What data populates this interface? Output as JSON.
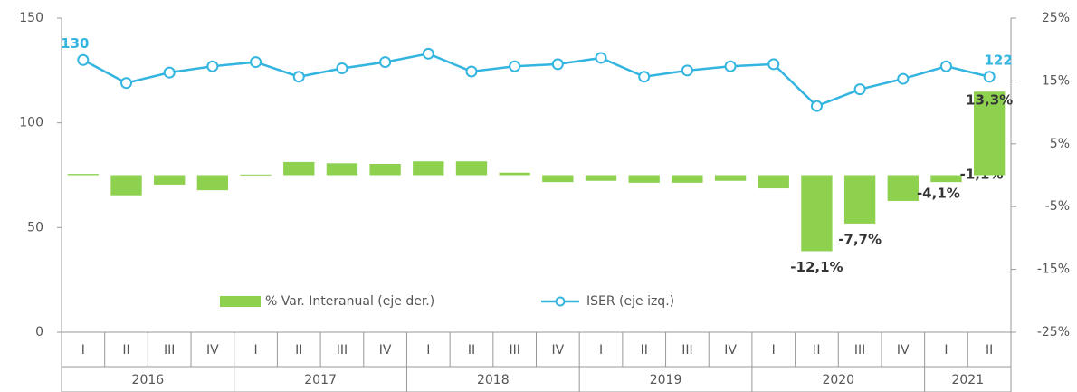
{
  "chart_data": {
    "type": "bar_line",
    "categories": [
      "I",
      "II",
      "III",
      "IV",
      "I",
      "II",
      "III",
      "IV",
      "I",
      "II",
      "III",
      "IV",
      "I",
      "II",
      "III",
      "IV",
      "I",
      "II",
      "III",
      "IV",
      "I",
      "II"
    ],
    "groups": [
      {
        "name": "2016",
        "count": 4
      },
      {
        "name": "2017",
        "count": 4
      },
      {
        "name": "2018",
        "count": 4
      },
      {
        "name": "2019",
        "count": 4
      },
      {
        "name": "2020",
        "count": 4
      },
      {
        "name": "2021",
        "count": 2
      }
    ],
    "series": [
      {
        "name": "% Var. Interanual (eje der.)",
        "type": "bar",
        "axis": "y2",
        "color": "#8dd14f",
        "values": [
          0.2,
          -3.2,
          -1.5,
          -2.4,
          0.1,
          2.1,
          1.9,
          1.8,
          2.2,
          2.2,
          0.4,
          -1.1,
          -0.9,
          -1.2,
          -1.2,
          -0.9,
          -2.1,
          -12.1,
          -7.7,
          -4.1,
          -1.1,
          13.3
        ],
        "value_labels": [
          null,
          null,
          null,
          null,
          null,
          null,
          null,
          null,
          null,
          null,
          null,
          null,
          null,
          null,
          null,
          null,
          null,
          "-12,1%",
          "-7,7%",
          "-4,1%",
          "-1,1%",
          "13,3%"
        ]
      },
      {
        "name": "ISER (eje izq.)",
        "type": "line",
        "axis": "y",
        "color": "#33b5e0",
        "values": [
          130,
          119,
          124,
          127,
          129,
          122,
          126,
          129,
          133,
          124.5,
          127,
          128,
          131,
          122,
          125,
          127,
          128,
          108,
          116,
          121,
          127,
          122
        ],
        "value_labels": [
          "130",
          null,
          null,
          null,
          null,
          null,
          null,
          null,
          null,
          null,
          null,
          null,
          null,
          null,
          null,
          null,
          null,
          null,
          null,
          null,
          null,
          "122"
        ]
      }
    ],
    "ylim": [
      0,
      150
    ],
    "yticks": [
      0,
      50,
      100,
      150
    ],
    "y2lim": [
      -25,
      25
    ],
    "y2ticks": [
      {
        "value": 25,
        "label": "25%"
      },
      {
        "value": 15,
        "label": "15%"
      },
      {
        "value": 5,
        "label": "5%"
      },
      {
        "value": -5,
        "label": "-5%"
      },
      {
        "value": -15,
        "label": "-15%"
      },
      {
        "value": -25,
        "label": "-25%"
      }
    ],
    "grid": false
  }
}
